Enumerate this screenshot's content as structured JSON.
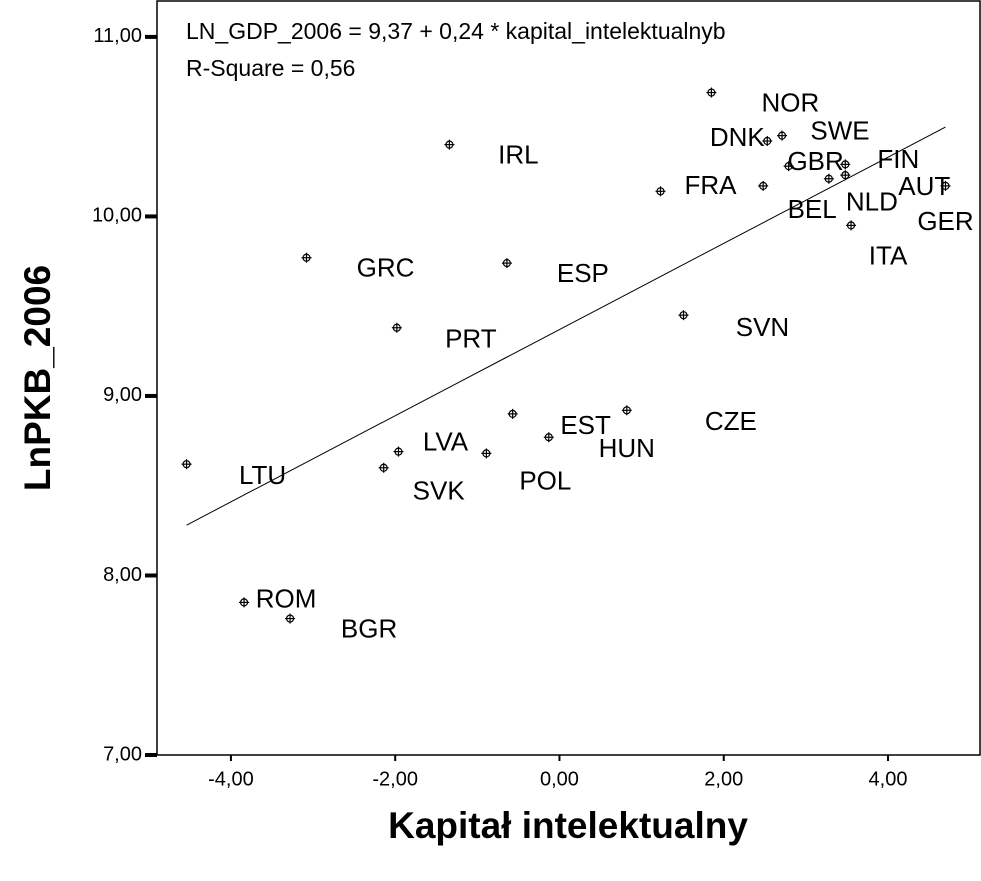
{
  "chart_data": {
    "type": "scatter",
    "annotations": [
      "LN_GDP_2006 = 9,37 + 0,24 * kapital_intelektualnyb",
      "R-Square = 0,56"
    ],
    "x_label": "Kapitał intelektualny",
    "y_label": "LnPKB_2006",
    "point_labels": [
      "LTU",
      "ROM",
      "BGR",
      "GRC",
      "PRT",
      "SVK",
      "LVA",
      "IRL",
      "POL",
      "EST",
      "ESP",
      "HUN",
      "FRA",
      "CZE",
      "SVN",
      "NOR",
      "DNK",
      "SWE",
      "GBR",
      "BEL",
      "NLD",
      "FIN",
      "AUT",
      "GER",
      "ITA"
    ],
    "x": [
      -4.54,
      -3.84,
      -3.28,
      -3.08,
      -1.98,
      -2.14,
      -1.96,
      -1.34,
      -0.89,
      -0.57,
      -0.64,
      -0.13,
      1.23,
      0.82,
      1.51,
      1.85,
      2.53,
      2.71,
      2.79,
      2.48,
      3.28,
      3.48,
      3.48,
      4.7,
      3.55
    ],
    "values": [
      8.62,
      7.85,
      7.76,
      9.77,
      9.38,
      8.6,
      8.69,
      10.4,
      8.68,
      8.9,
      9.74,
      8.77,
      10.14,
      8.92,
      9.45,
      10.69,
      10.42,
      10.45,
      10.28,
      10.17,
      10.21,
      10.29,
      10.23,
      10.17,
      9.95
    ],
    "color": "#000000",
    "fit": {
      "intercept": 9.37,
      "slope": 0.24
    },
    "xlim": [
      -4.9,
      5.12
    ],
    "ylim": [
      7,
      11.2
    ],
    "xticks": [
      {
        "value": -4,
        "label": "-4,00"
      },
      {
        "value": -2,
        "label": "-2,00"
      },
      {
        "value": 0,
        "label": "0,00"
      },
      {
        "value": 2,
        "label": "2,00"
      },
      {
        "value": 4,
        "label": "4,00"
      }
    ],
    "yticks": [
      {
        "value": 7,
        "label": "7,00"
      },
      {
        "value": 8,
        "label": "8,00"
      },
      {
        "value": 9,
        "label": "9,00"
      },
      {
        "value": 10,
        "label": "10,00"
      },
      {
        "value": 11,
        "label": "11,00"
      }
    ]
  }
}
